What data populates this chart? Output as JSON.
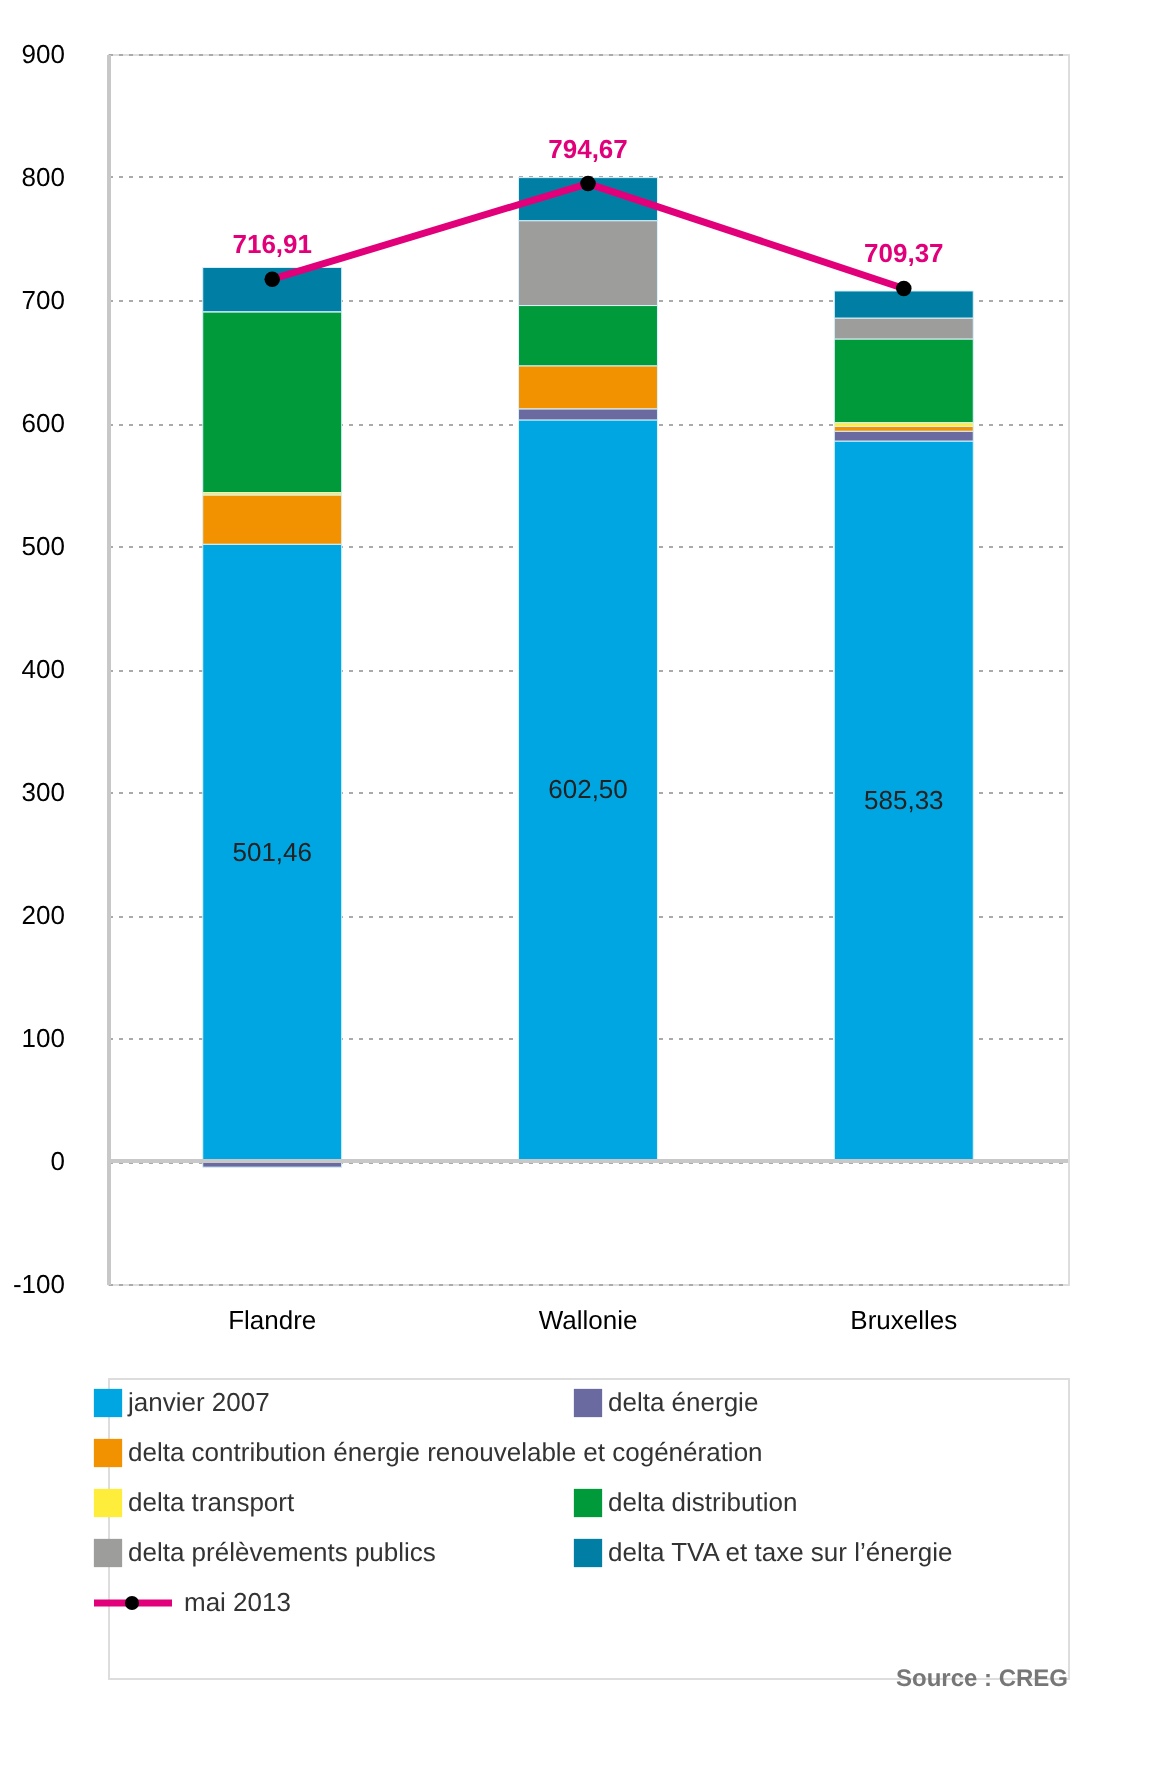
{
  "chart_data": {
    "type": "bar",
    "stacked": true,
    "categories": [
      "Flandre",
      "Wallonie",
      "Bruxelles"
    ],
    "series": [
      {
        "name": "janvier 2007",
        "color": "#00a6e2",
        "values": [
          501.46,
          602.5,
          585.33
        ],
        "value_labels": [
          "501,46",
          "602,50",
          "585,33"
        ]
      },
      {
        "name": "delta énergie",
        "color": "#6a6aa0",
        "values": [
          -5,
          9,
          8
        ]
      },
      {
        "name": "delta contribution énergie renouvelable et cogénération",
        "color": "#f39200",
        "values": [
          40,
          35,
          4
        ]
      },
      {
        "name": "delta transport",
        "color": "#ffed3b",
        "values": [
          2,
          -1,
          3
        ]
      },
      {
        "name": "delta distribution",
        "color": "#009a3a",
        "values": [
          147,
          49,
          68
        ]
      },
      {
        "name": "delta prélèvements publics",
        "color": "#9d9d9c",
        "values": [
          0,
          69,
          17
        ]
      },
      {
        "name": "delta TVA et taxe sur l’énergie",
        "color": "#007ea3",
        "values": [
          36,
          35,
          22
        ]
      },
      {
        "name": "mai 2013",
        "type": "line",
        "color": "#e2007a",
        "values": [
          716.91,
          794.67,
          709.37
        ],
        "value_labels": [
          "716,91",
          "794,67",
          "709,37"
        ],
        "marker": "circle"
      }
    ],
    "ylim": [
      -100,
      900
    ],
    "yticks": [
      -100,
      0,
      100,
      200,
      300,
      400,
      500,
      600,
      700,
      800,
      900
    ],
    "grid": "y",
    "ref_lines": [
      {
        "axis": "y",
        "value": 0,
        "color": "#c8c8c8"
      }
    ],
    "legend": "bottom",
    "annotations": [
      "Source : CREG"
    ]
  }
}
